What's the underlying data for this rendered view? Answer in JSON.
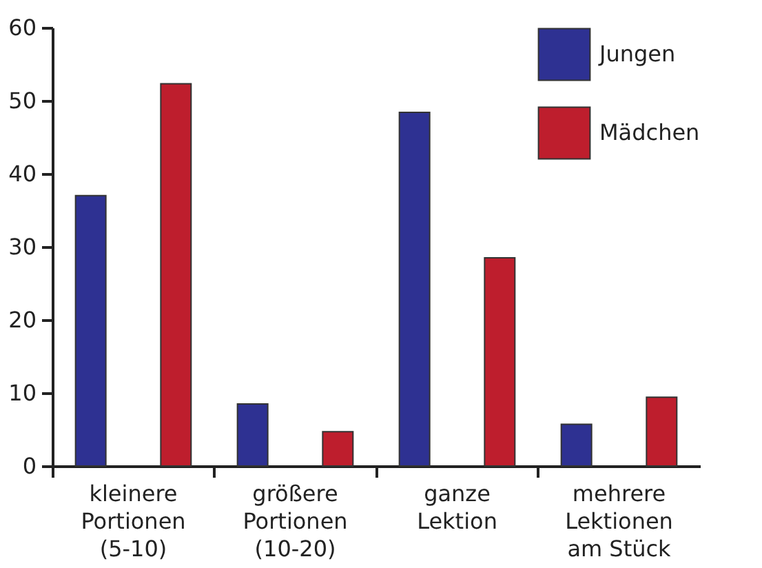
{
  "chart_data": {
    "type": "bar",
    "categories": [
      "kleinere\nPortionen\n(5-10)",
      "größere\nPortionen\n(10-20)",
      "ganze\nLektion",
      "mehrere\nLektionen\nam Stück"
    ],
    "series": [
      {
        "name": "Jungen",
        "color": "#2e3192",
        "values": [
          37.0,
          8.5,
          48.4,
          5.7
        ]
      },
      {
        "name": "Mädchen",
        "color": "#be1e2d",
        "values": [
          52.3,
          4.7,
          28.5,
          9.4
        ]
      }
    ],
    "ylim": [
      0,
      60
    ],
    "yticks": [
      0,
      10,
      20,
      30,
      40,
      50,
      60
    ],
    "grid": false,
    "legend": "top right"
  }
}
